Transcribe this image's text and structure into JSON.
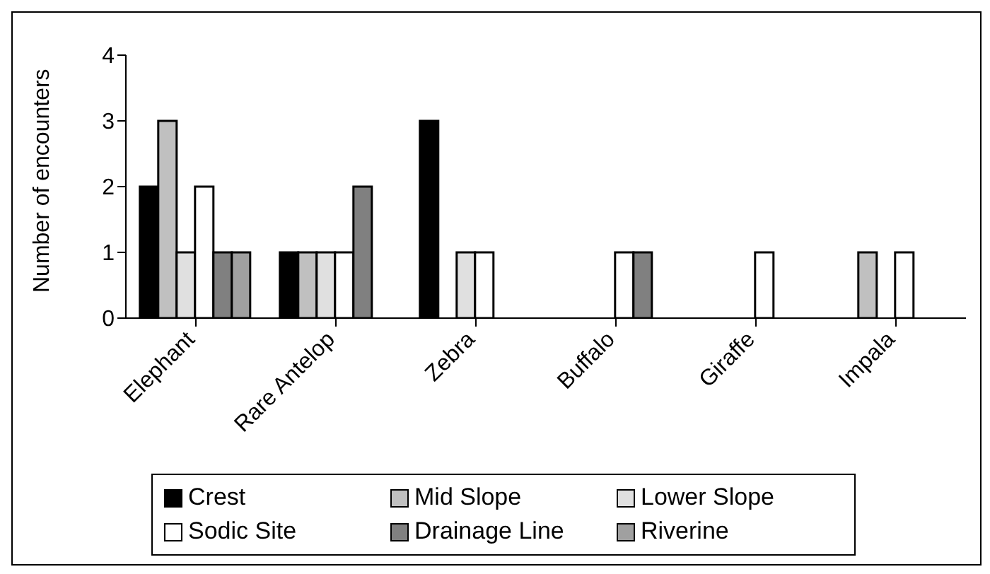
{
  "chart_data": {
    "type": "bar",
    "ylabel": "Number of encounters",
    "categories": [
      "Elephant",
      "Rare Antelop",
      "Zebra",
      "Buffalo",
      "Giraffe",
      "Impala"
    ],
    "series": [
      {
        "name": "Crest",
        "color": "#000000",
        "values": [
          2,
          1,
          3,
          0,
          0,
          0
        ]
      },
      {
        "name": "Mid Slope",
        "color": "#c0c0c0",
        "values": [
          3,
          1,
          0,
          0,
          0,
          1
        ]
      },
      {
        "name": "Lower Slope",
        "color": "#e0e0e0",
        "values": [
          1,
          1,
          1,
          0,
          0,
          0
        ]
      },
      {
        "name": "Sodic Site",
        "color": "#ffffff",
        "values": [
          2,
          1,
          1,
          1,
          1,
          1
        ]
      },
      {
        "name": "Drainage Line",
        "color": "#808080",
        "values": [
          1,
          2,
          0,
          1,
          0,
          0
        ]
      },
      {
        "name": "Riverine",
        "color": "#a0a0a0",
        "values": [
          1,
          0,
          0,
          0,
          0,
          0
        ]
      }
    ],
    "ylim": [
      0,
      4
    ],
    "yticks": [
      0,
      1,
      2,
      3,
      4
    ],
    "grid": false,
    "legend": "bottom"
  }
}
